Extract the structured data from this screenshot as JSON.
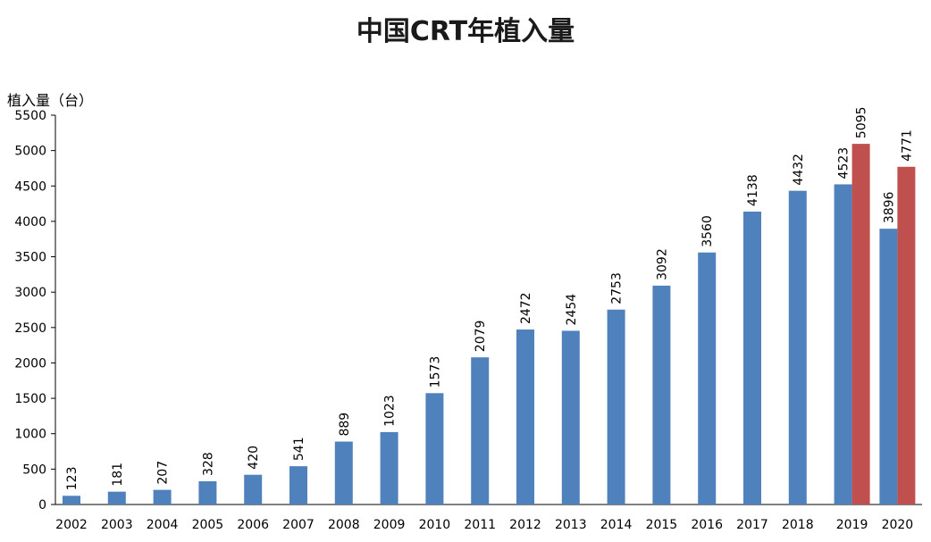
{
  "chart_data": {
    "type": "bar",
    "title": "中国CRT年植入量",
    "ylabel": "植入量（台）",
    "xlabel": "",
    "ylim": [
      0,
      5500
    ],
    "yticks": [
      0,
      500,
      1000,
      1500,
      2000,
      2500,
      3000,
      3500,
      4000,
      4500,
      5000,
      5500
    ],
    "categories": [
      "2002",
      "2003",
      "2004",
      "2005",
      "2006",
      "2007",
      "2008",
      "2009",
      "2010",
      "2011",
      "2012",
      "2013",
      "2014",
      "2015",
      "2016",
      "2017",
      "2018",
      "2019",
      "2020"
    ],
    "series": [
      {
        "color": "#4f81bd",
        "values": [
          123,
          181,
          207,
          328,
          420,
          541,
          889,
          1023,
          1573,
          2079,
          2472,
          2454,
          2753,
          3092,
          3560,
          4138,
          4432,
          4523,
          3896
        ]
      },
      {
        "color": "#c0504d",
        "values": [
          null,
          null,
          null,
          null,
          null,
          null,
          null,
          null,
          null,
          null,
          null,
          null,
          null,
          null,
          null,
          null,
          null,
          5095,
          4771
        ]
      }
    ],
    "grid": false,
    "legend": "none"
  }
}
